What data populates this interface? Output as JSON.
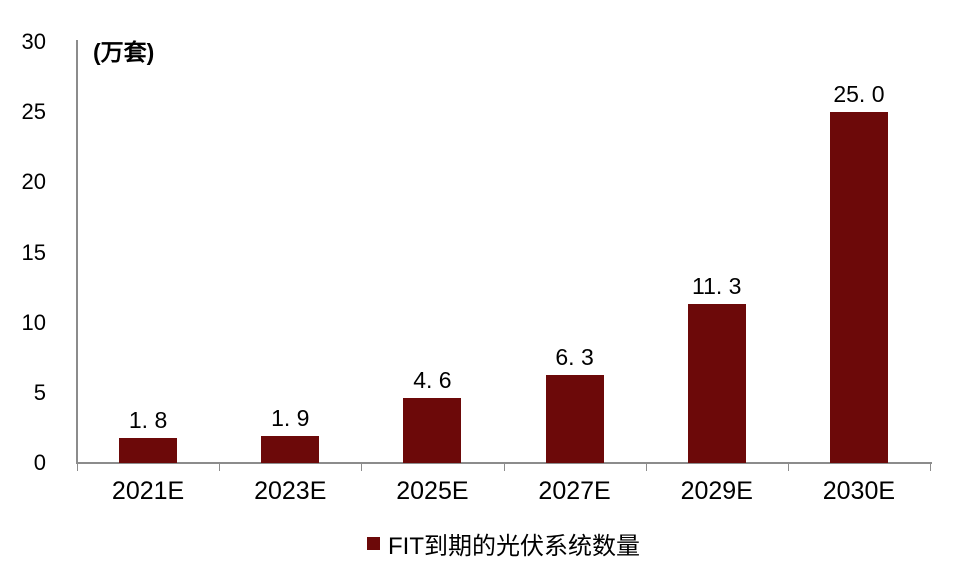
{
  "chart_data": {
    "type": "bar",
    "title": "",
    "unit_label": "(万套)",
    "categories": [
      "2021E",
      "2023E",
      "2025E",
      "2027E",
      "2029E",
      "2030E"
    ],
    "values": [
      1.8,
      1.9,
      4.6,
      6.3,
      11.3,
      25.0
    ],
    "value_labels": [
      "1. 8",
      "1. 9",
      "4. 6",
      "6. 3",
      "11. 3",
      "25. 0"
    ],
    "xlabel": "",
    "ylabel": "",
    "ylim": [
      0,
      30
    ],
    "y_ticks": [
      0,
      5,
      10,
      15,
      20,
      25,
      30
    ],
    "grid": false,
    "legend": {
      "label": "FIT到期的光伏系统数量",
      "position": "bottom-center"
    },
    "colors": {
      "bar": "#6C0909",
      "axis": "#8C8C8C",
      "text": "#000000",
      "background": "#FFFFFF"
    }
  }
}
